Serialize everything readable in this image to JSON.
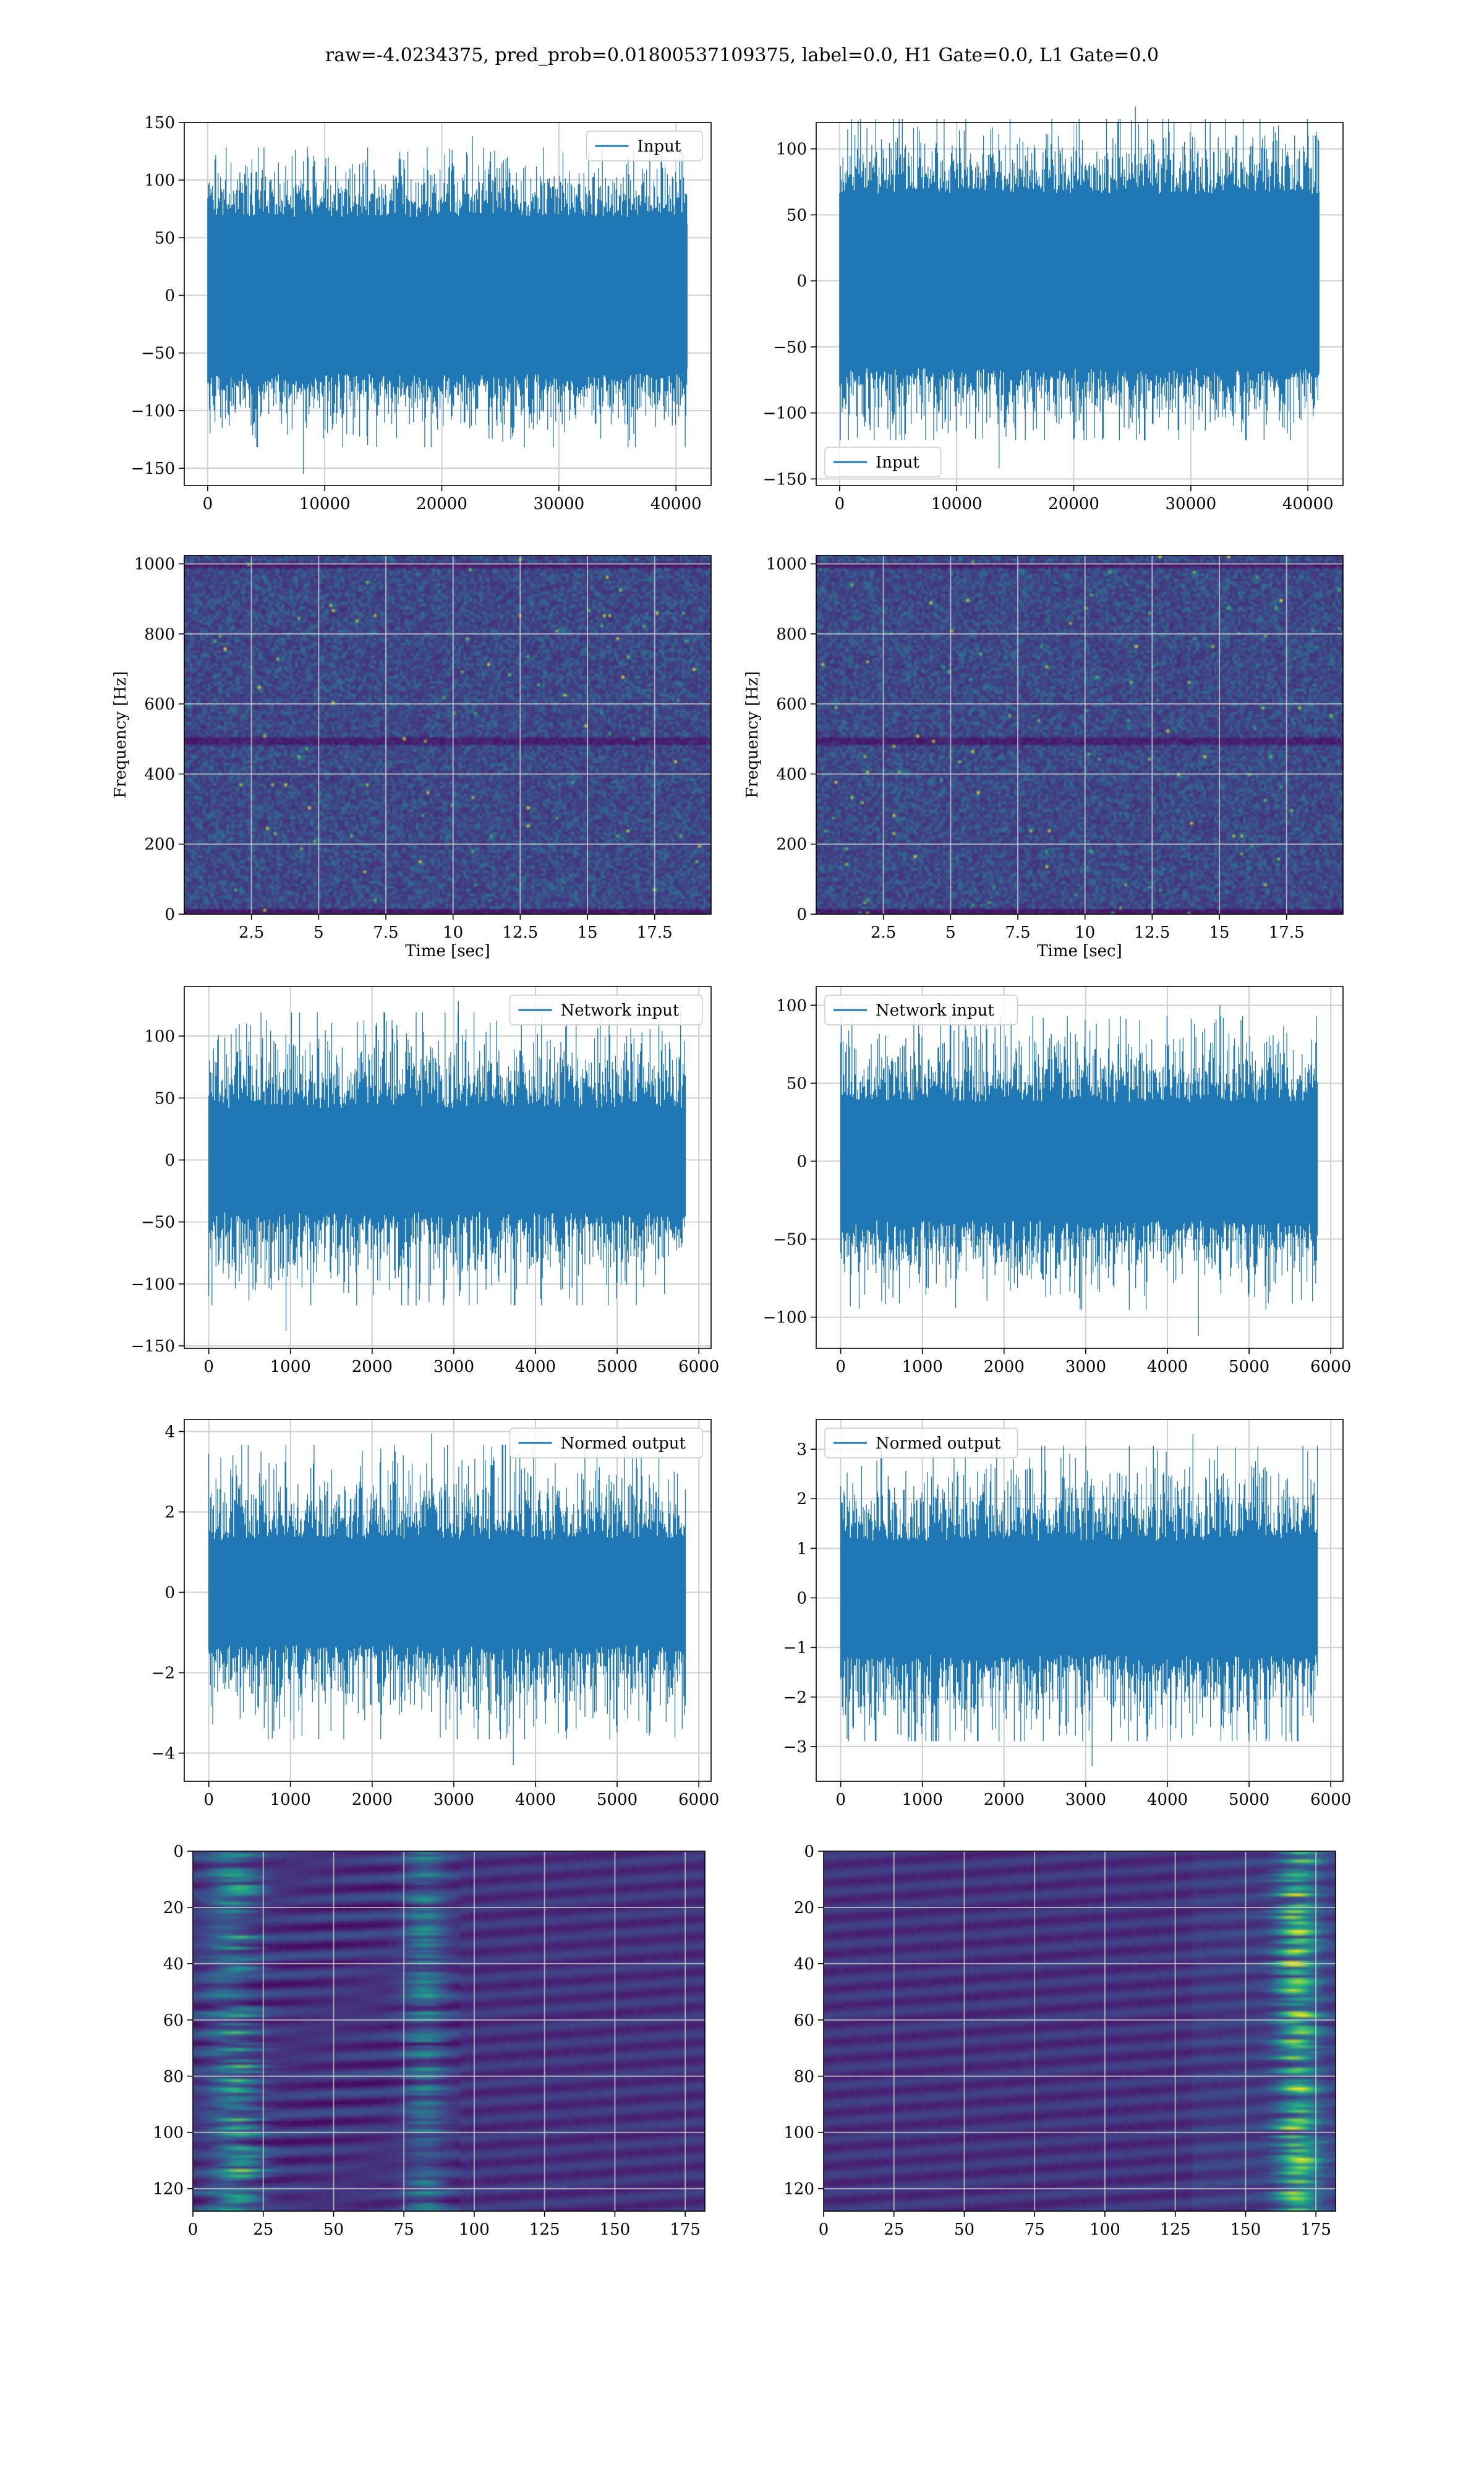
{
  "suptitle": "raw=-4.0234375, pred_prob=0.01800537109375, label=0.0, H1 Gate=0.0, L1 Gate=0.0",
  "colors": {
    "line": "#1f77b4",
    "grid": "#d0d0d0",
    "viridis": [
      "#440154",
      "#482878",
      "#3e4989",
      "#31688e",
      "#26828e",
      "#1f9e89",
      "#35b779",
      "#6ece58",
      "#b5de2b",
      "#fde725"
    ]
  },
  "chart_data": [
    {
      "id": "h1-input",
      "type": "line",
      "legend": "top-right",
      "series": [
        {
          "name": "Input"
        }
      ],
      "xlim": [
        -2000,
        43000
      ],
      "ylim": [
        -165,
        150
      ],
      "xticks": [
        0,
        10000,
        20000,
        30000,
        40000
      ],
      "yticks": [
        -150,
        -100,
        -50,
        0,
        50,
        100,
        150
      ],
      "xlabel": "",
      "ylabel": "",
      "grid": true,
      "signal": {
        "samples": 40960,
        "core": 68,
        "peak_max": 138,
        "peak_min": -155
      }
    },
    {
      "id": "l1-input",
      "type": "line",
      "legend": "bottom-left",
      "series": [
        {
          "name": "Input"
        }
      ],
      "xlim": [
        -2000,
        43000
      ],
      "ylim": [
        -155,
        120
      ],
      "xticks": [
        0,
        10000,
        20000,
        30000,
        40000
      ],
      "yticks": [
        -150,
        -100,
        -50,
        0,
        50,
        100
      ],
      "xlabel": "",
      "ylabel": "",
      "grid": true,
      "signal": {
        "samples": 40960,
        "core": 66,
        "peak_max": 132,
        "peak_min": -142
      }
    },
    {
      "id": "h1-spectrogram",
      "type": "heatmap",
      "xlim": [
        0,
        19.6
      ],
      "ylim": [
        0,
        1024
      ],
      "xticks": [
        2.5,
        5.0,
        7.5,
        10.0,
        12.5,
        15.0,
        17.5
      ],
      "yticks": [
        0,
        200,
        400,
        600,
        800,
        1000
      ],
      "xlabel": "Time [sec]",
      "ylabel": "Frequency [Hz]",
      "grid": true
    },
    {
      "id": "l1-spectrogram",
      "type": "heatmap",
      "xlim": [
        0,
        19.6
      ],
      "ylim": [
        0,
        1024
      ],
      "xticks": [
        2.5,
        5.0,
        7.5,
        10.0,
        12.5,
        15.0,
        17.5
      ],
      "yticks": [
        0,
        200,
        400,
        600,
        800,
        1000
      ],
      "xlabel": "Time [sec]",
      "ylabel": "Frequency [Hz]",
      "grid": true
    },
    {
      "id": "h1-network-input",
      "type": "line",
      "legend": "top-right",
      "series": [
        {
          "name": "Network input"
        }
      ],
      "xlim": [
        -300,
        6150
      ],
      "ylim": [
        -152,
        140
      ],
      "xticks": [
        0,
        1000,
        2000,
        3000,
        4000,
        5000,
        6000
      ],
      "yticks": [
        -150,
        -100,
        -50,
        0,
        50,
        100
      ],
      "xlabel": "",
      "ylabel": "",
      "grid": true,
      "signal": {
        "samples": 5840,
        "core": 42,
        "peak_max": 128,
        "peak_min": -138
      }
    },
    {
      "id": "l1-network-input",
      "type": "line",
      "legend": "top-left",
      "series": [
        {
          "name": "Network input"
        }
      ],
      "xlim": [
        -300,
        6150
      ],
      "ylim": [
        -120,
        112
      ],
      "xticks": [
        0,
        1000,
        2000,
        3000,
        4000,
        5000,
        6000
      ],
      "yticks": [
        -100,
        -50,
        0,
        50,
        100
      ],
      "xlabel": "",
      "ylabel": "",
      "grid": true,
      "signal": {
        "samples": 5840,
        "core": 38,
        "peak_max": 100,
        "peak_min": -112
      }
    },
    {
      "id": "h1-normed-output",
      "type": "line",
      "legend": "top-right",
      "series": [
        {
          "name": "Normed output"
        }
      ],
      "xlim": [
        -300,
        6150
      ],
      "ylim": [
        -4.7,
        4.3
      ],
      "xticks": [
        0,
        1000,
        2000,
        3000,
        4000,
        5000,
        6000
      ],
      "yticks": [
        -4,
        -2,
        0,
        2,
        4
      ],
      "xlabel": "",
      "ylabel": "",
      "grid": true,
      "signal": {
        "samples": 5840,
        "core": 1.3,
        "peak_max": 3.95,
        "peak_min": -4.3
      }
    },
    {
      "id": "l1-normed-output",
      "type": "line",
      "legend": "top-left",
      "series": [
        {
          "name": "Normed output"
        }
      ],
      "xlim": [
        -300,
        6150
      ],
      "ylim": [
        -3.7,
        3.6
      ],
      "xticks": [
        0,
        1000,
        2000,
        3000,
        4000,
        5000,
        6000
      ],
      "yticks": [
        -3,
        -2,
        -1,
        0,
        1,
        2,
        3
      ],
      "xlabel": "",
      "ylabel": "",
      "grid": true,
      "signal": {
        "samples": 5840,
        "core": 1.15,
        "peak_max": 3.3,
        "peak_min": -3.4
      }
    },
    {
      "id": "h1-feature-map",
      "type": "heatmap",
      "xlim": [
        0,
        182
      ],
      "ylim": [
        128,
        0
      ],
      "xticks": [
        0,
        25,
        50,
        75,
        100,
        125,
        150,
        175
      ],
      "yticks": [
        0,
        20,
        40,
        60,
        80,
        100,
        120
      ],
      "xlabel": "",
      "ylabel": "",
      "grid": true
    },
    {
      "id": "l1-feature-map",
      "type": "heatmap",
      "xlim": [
        0,
        182
      ],
      "ylim": [
        128,
        0
      ],
      "xticks": [
        0,
        25,
        50,
        75,
        100,
        125,
        150,
        175
      ],
      "yticks": [
        0,
        20,
        40,
        60,
        80,
        100,
        120
      ],
      "xlabel": "",
      "ylabel": "",
      "grid": true
    }
  ]
}
